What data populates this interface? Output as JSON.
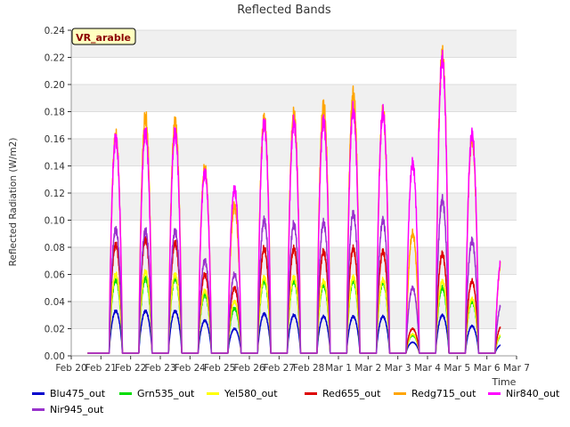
{
  "chart_data": {
    "type": "line",
    "title": "Reflected Bands",
    "xlabel": "Time",
    "ylabel": "Reflected Radiation (W/m2)",
    "annotation": "VR_arable",
    "ylim": [
      0,
      0.24
    ],
    "xlim": [
      0,
      15
    ],
    "yticks": [
      "0.00",
      "0.02",
      "0.04",
      "0.06",
      "0.08",
      "0.10",
      "0.12",
      "0.14",
      "0.16",
      "0.18",
      "0.20",
      "0.22",
      "0.24"
    ],
    "xticks": [
      "Feb 20",
      "Feb 21",
      "Feb 22",
      "Feb 23",
      "Feb 24",
      "Feb 25",
      "Feb 26",
      "Feb 27",
      "Feb 28",
      "Mar 1",
      "Mar 2",
      "Mar 3",
      "Mar 4",
      "Mar 5",
      "Mar 6",
      "Mar 7"
    ],
    "grid": true,
    "legend_position": "bottom",
    "days": [
      "Feb 21",
      "Feb 22",
      "Feb 23",
      "Feb 24",
      "Feb 25",
      "Feb 26",
      "Feb 27",
      "Feb 28",
      "Mar 1",
      "Mar 2",
      "Mar 3",
      "Mar 4",
      "Mar 5",
      "Mar 6"
    ],
    "series": [
      {
        "name": "Blu475_out",
        "color": "#0000cc",
        "daily_peak": [
          0.033,
          0.033,
          0.033,
          0.026,
          0.02,
          0.031,
          0.03,
          0.029,
          0.029,
          0.029,
          0.01,
          0.03,
          0.022,
          0.008
        ]
      },
      {
        "name": "Grn535_out",
        "color": "#00dd00",
        "daily_peak": [
          0.056,
          0.057,
          0.057,
          0.045,
          0.035,
          0.055,
          0.055,
          0.052,
          0.055,
          0.054,
          0.015,
          0.05,
          0.04,
          0.015
        ]
      },
      {
        "name": "Yel580_out",
        "color": "#ffff00",
        "daily_peak": [
          0.06,
          0.062,
          0.06,
          0.048,
          0.04,
          0.058,
          0.058,
          0.055,
          0.058,
          0.056,
          0.016,
          0.055,
          0.042,
          0.016
        ]
      },
      {
        "name": "Red655_out",
        "color": "#dd0000",
        "daily_peak": [
          0.082,
          0.086,
          0.083,
          0.06,
          0.05,
          0.079,
          0.079,
          0.077,
          0.079,
          0.077,
          0.02,
          0.075,
          0.055,
          0.022
        ]
      },
      {
        "name": "Redg715_out",
        "color": "#ffa500",
        "daily_peak": [
          0.162,
          0.176,
          0.172,
          0.138,
          0.11,
          0.175,
          0.178,
          0.184,
          0.193,
          0.18,
          0.09,
          0.222,
          0.16,
          0.07
        ]
      },
      {
        "name": "Nir840_out",
        "color": "#ff00ff",
        "daily_peak": [
          0.16,
          0.165,
          0.164,
          0.135,
          0.123,
          0.171,
          0.172,
          0.173,
          0.181,
          0.179,
          0.142,
          0.218,
          0.163,
          0.072
        ]
      },
      {
        "name": "Nir945_out",
        "color": "#9933cc",
        "daily_peak": [
          0.093,
          0.092,
          0.092,
          0.07,
          0.06,
          0.1,
          0.097,
          0.098,
          0.105,
          0.1,
          0.05,
          0.115,
          0.085,
          0.038
        ]
      }
    ]
  }
}
